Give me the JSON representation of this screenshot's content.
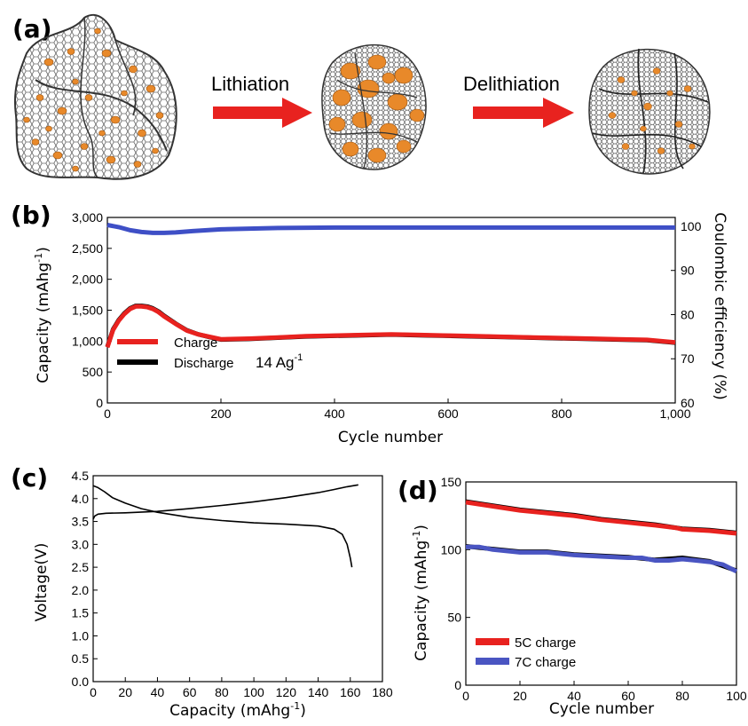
{
  "panel_a": {
    "letter": "(a)",
    "arrow1_label": "Lithiation",
    "arrow2_label": "Delithiation",
    "arrow_color": "#e8221f",
    "particle_color": "#e8892a",
    "mesh_color": "#555555"
  },
  "chart_data": [
    {
      "panel": "(b)",
      "type": "line",
      "xlabel": "Cycle number",
      "ylabel": "Capacity (mAhg",
      "ylabel_sup": "-1",
      "ylabel_right": "Coulombic efficiency (%)",
      "xlim": [
        0,
        1000
      ],
      "ylim": [
        0,
        3000
      ],
      "ylim_right": [
        60,
        102
      ],
      "xticks": [
        0,
        200,
        400,
        600,
        800,
        1000
      ],
      "xtick_labels": [
        "0",
        "200",
        "400",
        "600",
        "800",
        "1,000"
      ],
      "yticks": [
        0,
        500,
        1000,
        1500,
        2000,
        2500,
        3000
      ],
      "ytick_labels": [
        "0",
        "500",
        "1,000",
        "1,500",
        "2,000",
        "2,500",
        "3,000"
      ],
      "yticks_right": [
        60,
        70,
        80,
        90,
        100
      ],
      "annotation": "14 Ag",
      "annotation_sup": "-1",
      "legend": "bottom-left",
      "series": [
        {
          "name": "Charge",
          "color": "#e8221f",
          "axis": "left",
          "x": [
            0,
            10,
            20,
            30,
            40,
            50,
            60,
            70,
            80,
            90,
            100,
            120,
            140,
            160,
            180,
            200,
            250,
            300,
            350,
            400,
            450,
            500,
            550,
            600,
            650,
            700,
            750,
            800,
            850,
            900,
            950,
            1000
          ],
          "y": [
            900,
            1180,
            1330,
            1440,
            1520,
            1560,
            1560,
            1550,
            1520,
            1470,
            1400,
            1280,
            1170,
            1110,
            1070,
            1030,
            1040,
            1060,
            1080,
            1090,
            1100,
            1110,
            1100,
            1090,
            1080,
            1070,
            1060,
            1050,
            1040,
            1030,
            1020,
            980
          ]
        },
        {
          "name": "Discharge",
          "color": "#000000",
          "axis": "left",
          "x": [
            0,
            10,
            20,
            30,
            40,
            50,
            60,
            70,
            80,
            90,
            100,
            120,
            140,
            160,
            180,
            200,
            250,
            300,
            350,
            400,
            450,
            500,
            550,
            600,
            650,
            700,
            750,
            800,
            850,
            900,
            950,
            1000
          ],
          "y": [
            910,
            1190,
            1340,
            1450,
            1530,
            1570,
            1570,
            1560,
            1530,
            1480,
            1410,
            1285,
            1175,
            1110,
            1065,
            1025,
            1035,
            1055,
            1075,
            1085,
            1095,
            1105,
            1095,
            1085,
            1075,
            1065,
            1055,
            1045,
            1035,
            1025,
            1015,
            975
          ]
        },
        {
          "name": "Coulombic efficiency",
          "color": "#3e4fc6",
          "axis": "right",
          "x": [
            0,
            20,
            40,
            60,
            80,
            100,
            120,
            150,
            200,
            300,
            400,
            600,
            800,
            1000
          ],
          "y": [
            100.3,
            99.8,
            99.1,
            98.7,
            98.5,
            98.5,
            98.6,
            98.9,
            99.3,
            99.6,
            99.7,
            99.7,
            99.7,
            99.7
          ]
        }
      ]
    },
    {
      "panel": "(c)",
      "type": "line",
      "xlabel": "Capacity (mAhg",
      "xlabel_sup": "-1",
      "ylabel": "Voltage(V)",
      "xlim": [
        0,
        180
      ],
      "ylim": [
        0,
        4.5
      ],
      "xticks": [
        0,
        20,
        40,
        60,
        80,
        100,
        120,
        140,
        160,
        180
      ],
      "yticks": [
        0.0,
        0.5,
        1.0,
        1.5,
        2.0,
        2.5,
        3.0,
        3.5,
        4.0,
        4.5
      ],
      "ytick_labels": [
        "0.0",
        "0.5",
        "1.0",
        "1.5",
        "2.0",
        "2.5",
        "3.0",
        "3.5",
        "4.0",
        "4.5"
      ],
      "series": [
        {
          "color": "#000000",
          "x": [
            0,
            1,
            3,
            8,
            20,
            40,
            60,
            80,
            100,
            120,
            140,
            150,
            158,
            165
          ],
          "y": [
            3.55,
            3.62,
            3.66,
            3.68,
            3.69,
            3.72,
            3.78,
            3.85,
            3.93,
            4.02,
            4.13,
            4.2,
            4.26,
            4.3
          ]
        },
        {
          "color": "#000000",
          "x": [
            0,
            3,
            7,
            12,
            20,
            30,
            40,
            60,
            80,
            100,
            120,
            140,
            150,
            155,
            158,
            160,
            161
          ],
          "y": [
            4.28,
            4.24,
            4.15,
            4.02,
            3.9,
            3.78,
            3.7,
            3.59,
            3.52,
            3.47,
            3.44,
            3.4,
            3.33,
            3.22,
            3.0,
            2.7,
            2.5
          ]
        }
      ]
    },
    {
      "panel": "(d)",
      "type": "line",
      "xlabel": "Cycle number",
      "ylabel": "Capacity (mAhg",
      "ylabel_sup": "-1",
      "xlim": [
        0,
        100
      ],
      "ylim": [
        0,
        150
      ],
      "xticks": [
        0,
        20,
        40,
        60,
        80,
        100
      ],
      "yticks": [
        0,
        50,
        100,
        150
      ],
      "legend": "bottom-left",
      "series": [
        {
          "name": "5C charge",
          "color": "#e8221f",
          "x": [
            0,
            10,
            20,
            30,
            40,
            50,
            60,
            70,
            78,
            80,
            90,
            95,
            100
          ],
          "y": [
            135,
            132,
            129,
            127,
            125,
            122,
            120,
            118,
            116,
            115,
            114,
            113,
            112
          ]
        },
        {
          "name": "7C charge",
          "color": "#4a55c2",
          "x": [
            0,
            5,
            10,
            20,
            30,
            40,
            50,
            60,
            65,
            70,
            75,
            80,
            85,
            90,
            95,
            100
          ],
          "y": [
            102,
            102,
            100,
            98,
            98,
            96,
            95,
            94,
            94,
            92,
            92,
            93,
            92,
            91,
            89,
            84
          ]
        },
        {
          "color": "#000000",
          "x": [
            0,
            10,
            20,
            30,
            40,
            50,
            60,
            70,
            80,
            90,
            100
          ],
          "y": [
            135.5,
            132.5,
            129.5,
            127.5,
            125.5,
            122.5,
            120.5,
            118.5,
            115.5,
            114.5,
            112.5
          ]
        },
        {
          "color": "#000000",
          "x": [
            0,
            10,
            20,
            30,
            40,
            50,
            60,
            70,
            80,
            90,
            100
          ],
          "y": [
            102.5,
            100.5,
            98.5,
            98.5,
            96.5,
            95.5,
            94.5,
            92.5,
            94,
            91.5,
            84.5
          ]
        }
      ]
    }
  ]
}
